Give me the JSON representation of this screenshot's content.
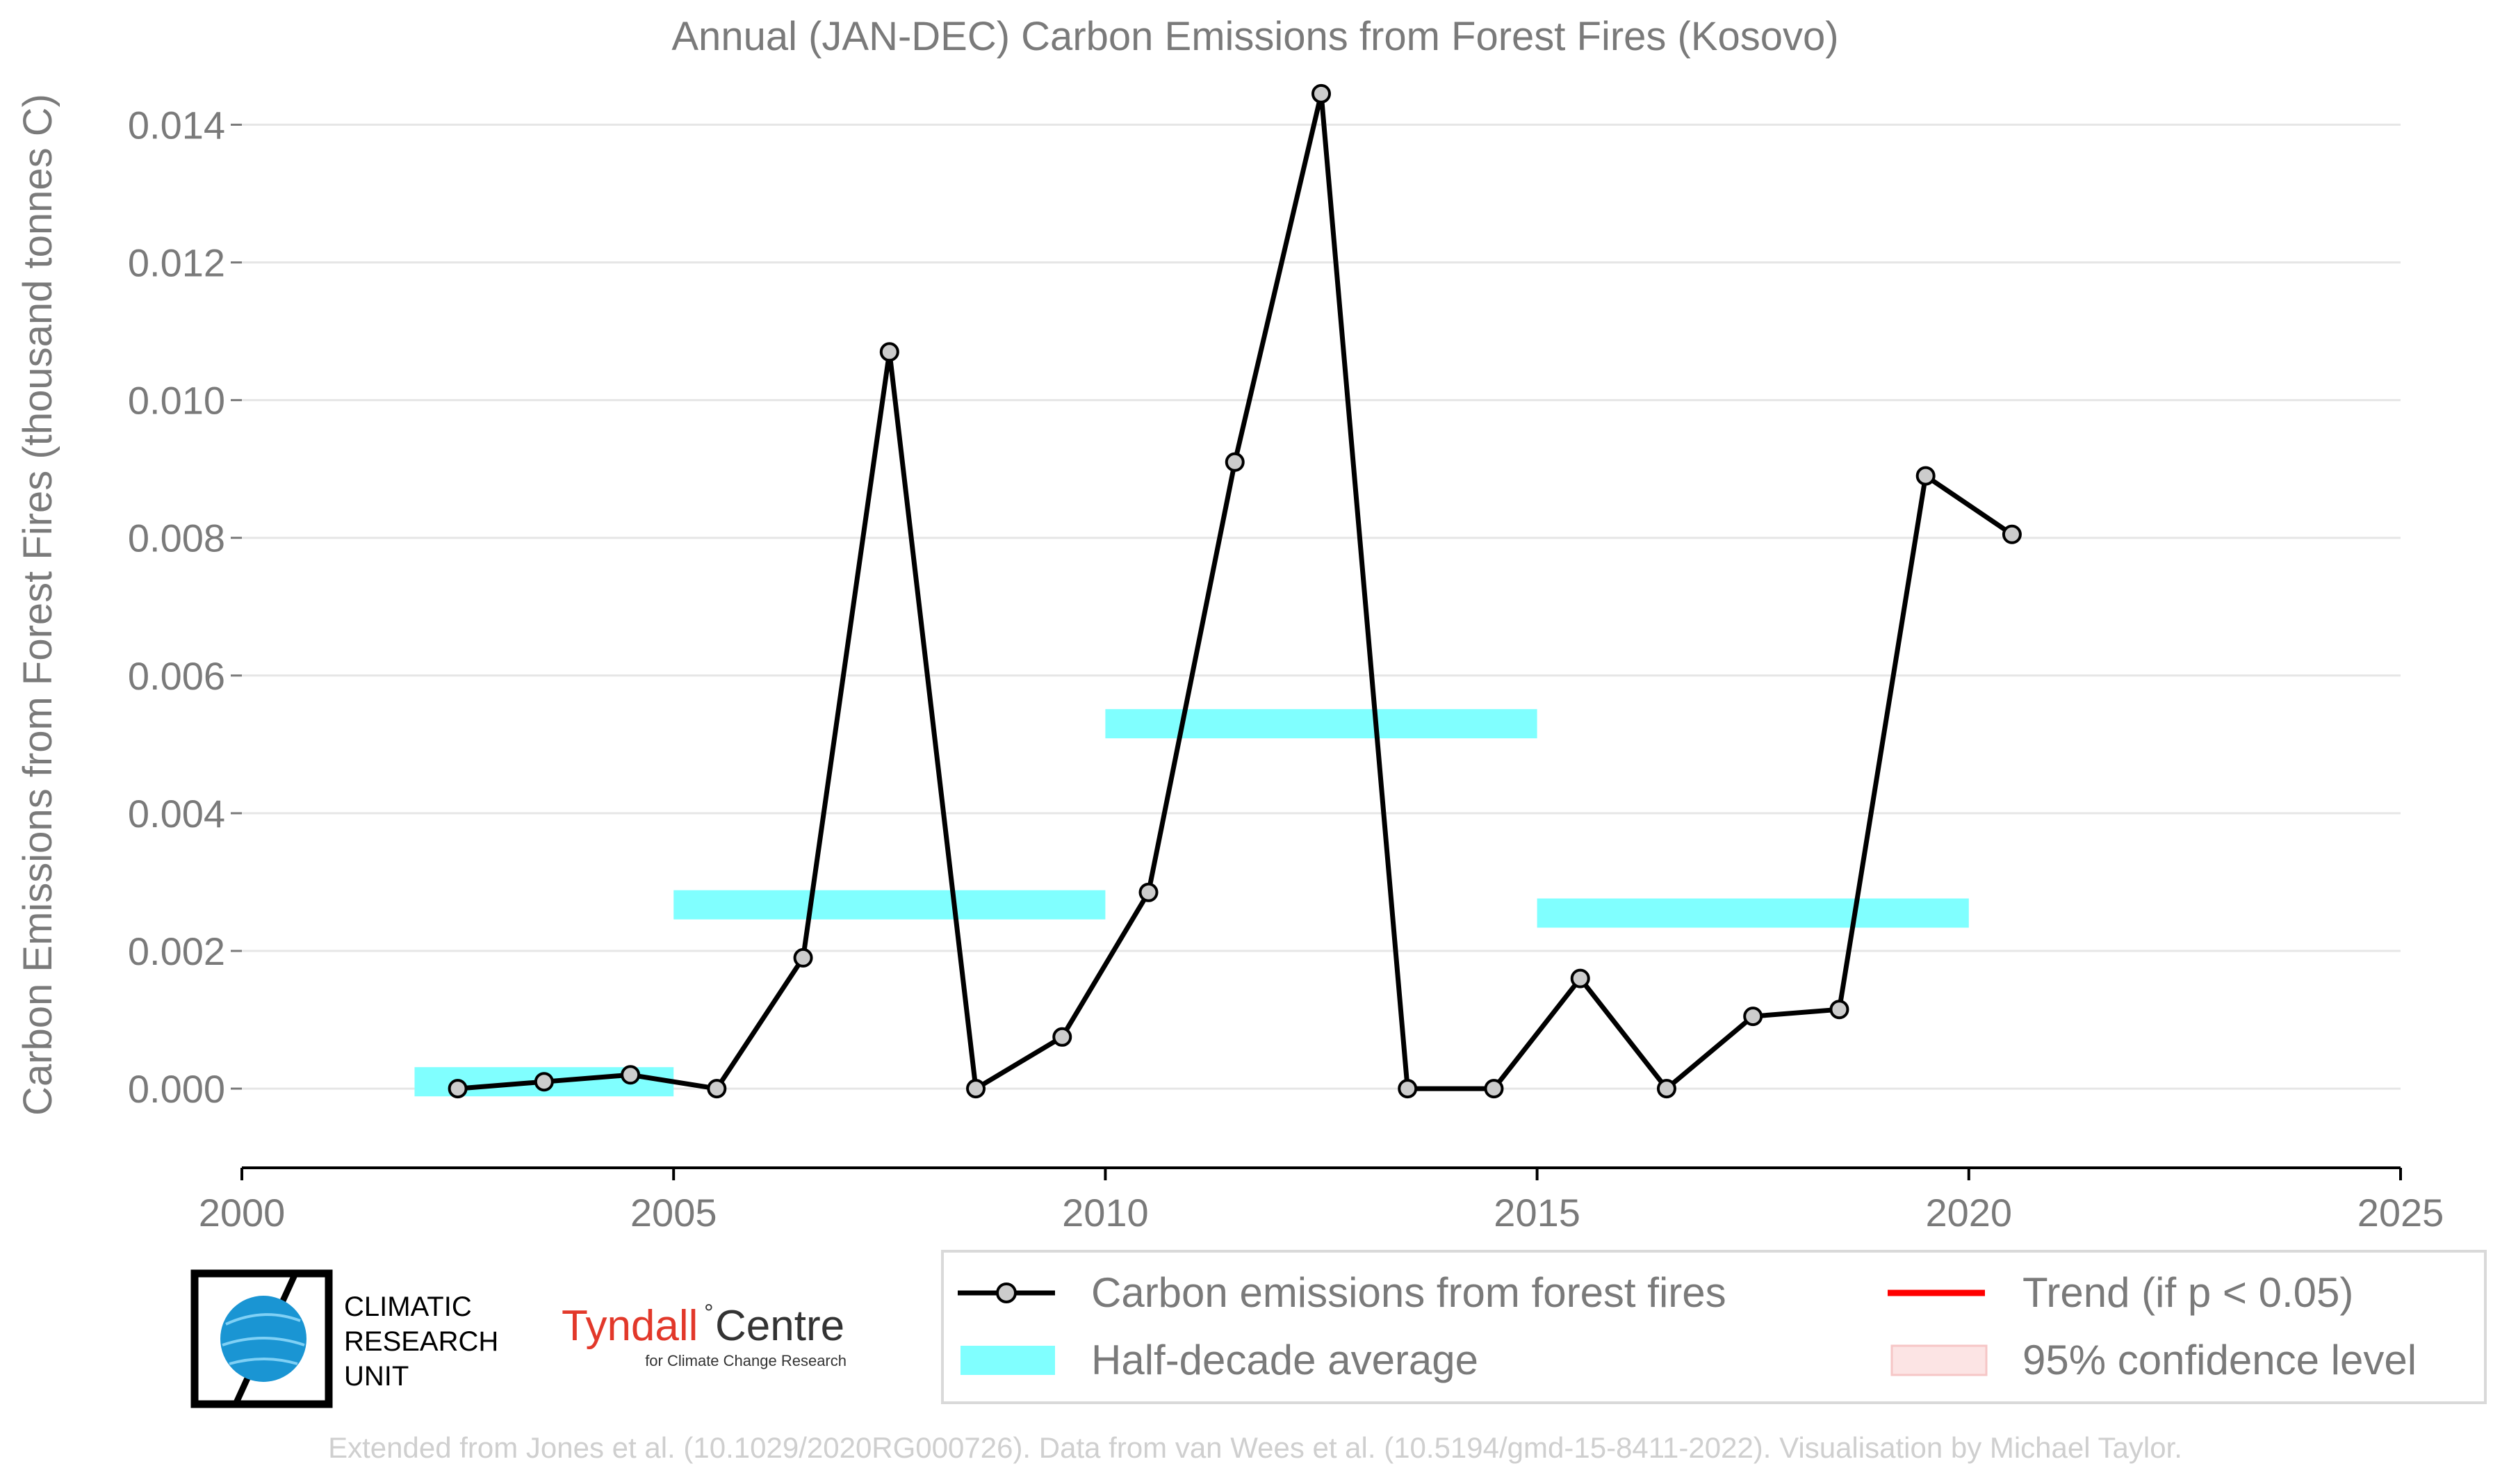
{
  "chart_data": {
    "type": "line",
    "title": "Annual (JAN-DEC) Carbon Emissions from Forest Fires (Kosovo)",
    "xlabel": "",
    "ylabel": "Carbon Emissions from Forest Fires (thousand tonnes C)",
    "xlim": [
      2000,
      2025
    ],
    "ylim": [
      -0.00115,
      0.0146
    ],
    "x_ticks": [
      "2000",
      "2005",
      "2010",
      "2015",
      "2020",
      "2025"
    ],
    "y_ticks": [
      "0.000",
      "0.002",
      "0.004",
      "0.006",
      "0.008",
      "0.010",
      "0.012",
      "0.014"
    ],
    "grid": "horizontal",
    "series": [
      {
        "name": "Carbon emissions from forest fires",
        "color": "#000000",
        "marker_fill": "#cccccc",
        "x": [
          2002.5,
          2003.5,
          2004.5,
          2005.5,
          2006.5,
          2007.5,
          2008.5,
          2009.5,
          2010.5,
          2011.5,
          2012.5,
          2013.5,
          2014.5,
          2015.5,
          2016.5,
          2017.5,
          2018.5,
          2019.5,
          2020.5
        ],
        "y": [
          0.0,
          0.0001,
          0.0002,
          0.0,
          0.0019,
          0.0107,
          0.0,
          0.00075,
          0.00285,
          0.0091,
          0.01445,
          0.0,
          0.0,
          0.0016,
          0.0,
          0.00105,
          0.00115,
          0.0089,
          0.00805
        ]
      }
    ],
    "half_decade_average": {
      "name": "Half-decade average",
      "color": "#80ffff",
      "bars": [
        {
          "x0": 2002,
          "x1": 2005,
          "y": 0.0001
        },
        {
          "x0": 2005,
          "x1": 2010,
          "y": 0.00267
        },
        {
          "x0": 2010,
          "x1": 2015,
          "y": 0.0053
        },
        {
          "x0": 2015,
          "x1": 2020,
          "y": 0.00255
        }
      ]
    },
    "legend": {
      "placement": "bottom-right",
      "entries": [
        {
          "label": "Carbon emissions from forest fires",
          "kind": "line-marker",
          "color": "#000000"
        },
        {
          "label": "Trend (if p < 0.05)",
          "kind": "line",
          "color": "#ff0000"
        },
        {
          "label": "Half-decade average",
          "kind": "band",
          "color": "#80ffff"
        },
        {
          "label": "95% confidence level",
          "kind": "band",
          "color": "#fadadd"
        }
      ]
    }
  },
  "logos": {
    "cru_line1": "CLIMATIC",
    "cru_line2": "RESEARCH",
    "cru_line3": "UNIT",
    "tyndall_name": "Tyndall",
    "tyndall_centre": "Centre",
    "tyndall_sub": "for Climate Change Research"
  },
  "credit": "Extended from Jones et al. (10.1029/2020RG000726). Data from van Wees et al. (10.5194/gmd-15-8411-2022). Visualisation by Michael Taylor."
}
